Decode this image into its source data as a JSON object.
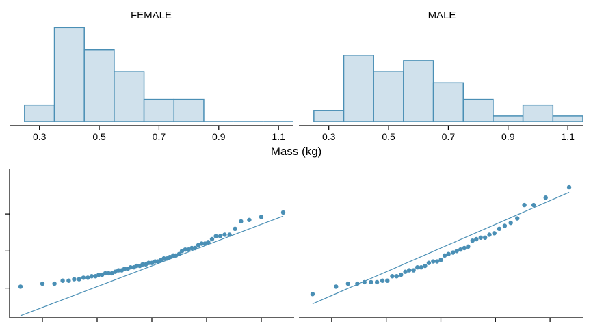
{
  "colors": {
    "bar_fill": "#d0e1ec",
    "bar_stroke": "#4a8fb5",
    "point": "#4a8fb5",
    "line": "#4a8fb5"
  },
  "chart_data": [
    {
      "type": "bar",
      "subtype": "histogram",
      "title": "FEMALE",
      "xlabel": "Mass (kg)",
      "ylabel": "",
      "bin_edges": [
        0.25,
        0.35,
        0.45,
        0.55,
        0.65,
        0.75,
        0.85,
        0.95,
        1.05,
        1.15
      ],
      "values": [
        3,
        17,
        13,
        9,
        4,
        4,
        0,
        0,
        0
      ],
      "xlim": [
        0.2,
        1.15
      ],
      "xticks": [
        "0.3",
        "0.5",
        "0.7",
        "0.9",
        "1.1"
      ],
      "y_ticks_shown": false
    },
    {
      "type": "bar",
      "subtype": "histogram",
      "title": "MALE",
      "xlabel": "Mass (kg)",
      "ylabel": "",
      "bin_edges": [
        0.25,
        0.35,
        0.45,
        0.55,
        0.65,
        0.75,
        0.85,
        0.95,
        1.05,
        1.15
      ],
      "values": [
        2,
        12,
        9,
        11,
        7,
        4,
        1,
        3,
        1
      ],
      "xlim": [
        0.2,
        1.15
      ],
      "xticks": [
        "0.3",
        "0.5",
        "0.7",
        "0.9",
        "1.1"
      ],
      "y_ticks_shown": false
    },
    {
      "type": "scatter",
      "subtype": "qq-plot",
      "title": "",
      "xlabel": "",
      "ylabel": "",
      "tick_labels_shown": false,
      "x_ticks": [
        -2,
        -1,
        0,
        1,
        2
      ],
      "y_ticks": [
        0.25,
        0.5,
        0.75
      ],
      "xlim": [
        -2.6,
        2.6
      ],
      "ylim": [
        0.05,
        1.05
      ],
      "x": [
        -2.4,
        -2.0,
        -1.78,
        -1.63,
        -1.52,
        -1.42,
        -1.33,
        -1.25,
        -1.17,
        -1.1,
        -1.03,
        -0.97,
        -0.91,
        -0.85,
        -0.79,
        -0.73,
        -0.67,
        -0.61,
        -0.55,
        -0.5,
        -0.44,
        -0.39,
        -0.33,
        -0.28,
        -0.22,
        -0.17,
        -0.11,
        -0.06,
        0.0,
        0.06,
        0.11,
        0.17,
        0.22,
        0.28,
        0.33,
        0.39,
        0.44,
        0.5,
        0.55,
        0.61,
        0.67,
        0.73,
        0.79,
        0.85,
        0.91,
        0.97,
        1.03,
        1.1,
        1.17,
        1.25,
        1.33,
        1.42,
        1.52,
        1.63,
        1.78,
        2.0,
        2.4
      ],
      "y": [
        0.26,
        0.28,
        0.28,
        0.3,
        0.3,
        0.31,
        0.31,
        0.32,
        0.32,
        0.33,
        0.33,
        0.34,
        0.34,
        0.35,
        0.35,
        0.35,
        0.36,
        0.37,
        0.37,
        0.38,
        0.38,
        0.39,
        0.39,
        0.4,
        0.4,
        0.41,
        0.41,
        0.42,
        0.42,
        0.43,
        0.43,
        0.44,
        0.45,
        0.45,
        0.46,
        0.47,
        0.47,
        0.48,
        0.5,
        0.51,
        0.51,
        0.52,
        0.52,
        0.54,
        0.55,
        0.55,
        0.56,
        0.58,
        0.6,
        0.6,
        0.61,
        0.61,
        0.65,
        0.7,
        0.71,
        0.73,
        0.76
      ],
      "reference_line": {
        "intercept": 0.4,
        "slope": 0.14
      }
    },
    {
      "type": "scatter",
      "subtype": "qq-plot",
      "title": "",
      "xlabel": "",
      "ylabel": "",
      "tick_labels_shown": false,
      "x_ticks": [
        -2,
        -1,
        0,
        1,
        2
      ],
      "y_ticks": [
        0.25,
        0.5,
        0.75
      ],
      "xlim": [
        -2.6,
        2.6
      ],
      "ylim": [
        0.05,
        1.05
      ],
      "x": [
        -2.35,
        -1.92,
        -1.7,
        -1.53,
        -1.4,
        -1.28,
        -1.17,
        -1.07,
        -0.98,
        -0.89,
        -0.81,
        -0.73,
        -0.65,
        -0.58,
        -0.5,
        -0.43,
        -0.36,
        -0.29,
        -0.22,
        -0.14,
        -0.07,
        0.0,
        0.07,
        0.14,
        0.22,
        0.29,
        0.36,
        0.43,
        0.5,
        0.58,
        0.65,
        0.73,
        0.81,
        0.89,
        0.98,
        1.07,
        1.17,
        1.28,
        1.4,
        1.53,
        1.7,
        1.92,
        2.35
      ],
      "y": [
        0.21,
        0.26,
        0.28,
        0.28,
        0.29,
        0.29,
        0.29,
        0.3,
        0.3,
        0.33,
        0.33,
        0.34,
        0.36,
        0.37,
        0.37,
        0.39,
        0.39,
        0.4,
        0.42,
        0.43,
        0.43,
        0.44,
        0.47,
        0.48,
        0.49,
        0.5,
        0.51,
        0.52,
        0.53,
        0.57,
        0.58,
        0.59,
        0.59,
        0.61,
        0.62,
        0.65,
        0.67,
        0.69,
        0.72,
        0.81,
        0.81,
        0.86,
        0.93
      ],
      "reference_line": {
        "intercept": 0.52,
        "slope": 0.16
      }
    }
  ],
  "shared_xlabel": "Mass (kg)"
}
